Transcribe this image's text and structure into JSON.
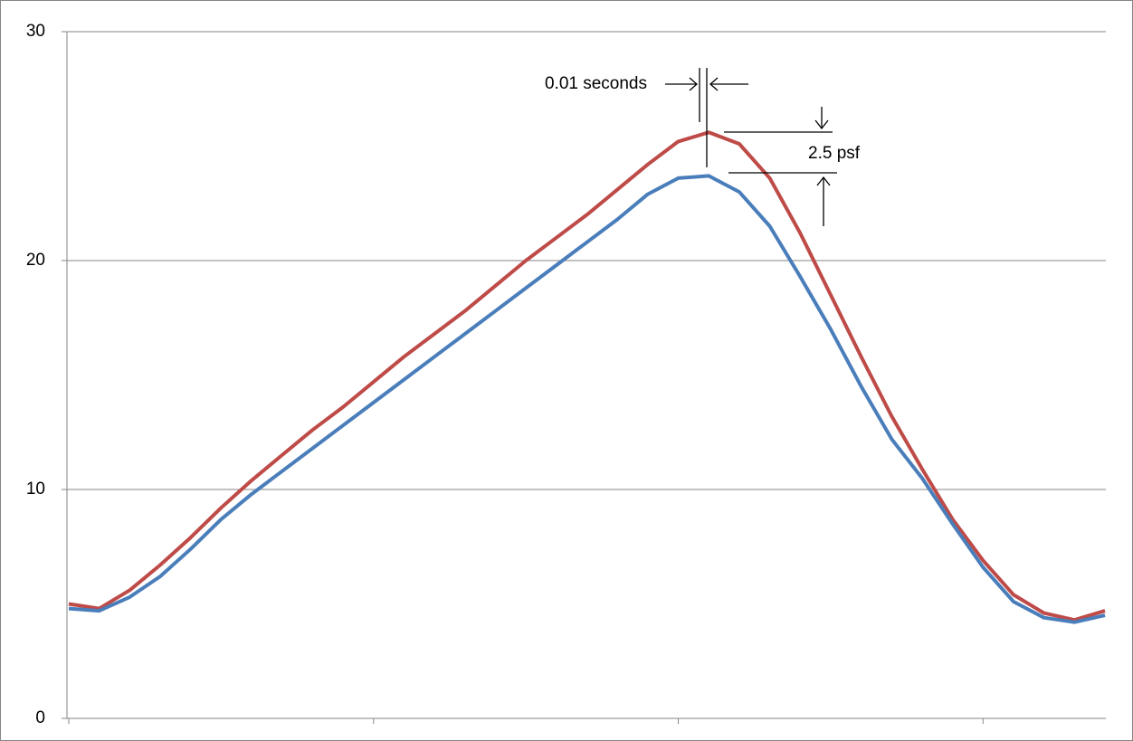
{
  "chart_data": {
    "type": "line",
    "categories": [
      null,
      null,
      null,
      null,
      null,
      null,
      null,
      null,
      null,
      null,
      null,
      null,
      null,
      null,
      null,
      null,
      null,
      null,
      null,
      null,
      null,
      null,
      null,
      null,
      null,
      null,
      null,
      null,
      null,
      null,
      null,
      null,
      null,
      null,
      null
    ],
    "series": [
      {
        "color": "#be4b48",
        "values": [
          5.0,
          4.8,
          5.6,
          6.7,
          7.9,
          9.2,
          10.4,
          11.5,
          12.6,
          13.6,
          14.7,
          15.8,
          16.8,
          17.8,
          18.9,
          20.0,
          21.0,
          22.0,
          23.1,
          24.2,
          25.2,
          25.6,
          25.1,
          23.6,
          21.2,
          18.5,
          15.8,
          13.2,
          10.9,
          8.7,
          6.9,
          5.4,
          4.6,
          4.3,
          4.7
        ]
      },
      {
        "color": "#4a7ebb",
        "values": [
          4.8,
          4.7,
          5.3,
          6.2,
          7.4,
          8.7,
          9.8,
          10.8,
          11.8,
          12.8,
          13.8,
          14.8,
          15.8,
          16.8,
          17.8,
          18.8,
          19.8,
          20.8,
          21.8,
          22.9,
          23.6,
          23.7,
          23.0,
          21.5,
          19.3,
          17.0,
          14.5,
          12.2,
          10.5,
          8.5,
          6.6,
          5.1,
          4.4,
          4.2,
          4.5
        ]
      }
    ],
    "ylim": [
      0,
      30
    ],
    "yticks": [
      0,
      10,
      20,
      30
    ],
    "grid": true,
    "annotations": [
      "0.01 seconds",
      "2.5 psf"
    ]
  }
}
